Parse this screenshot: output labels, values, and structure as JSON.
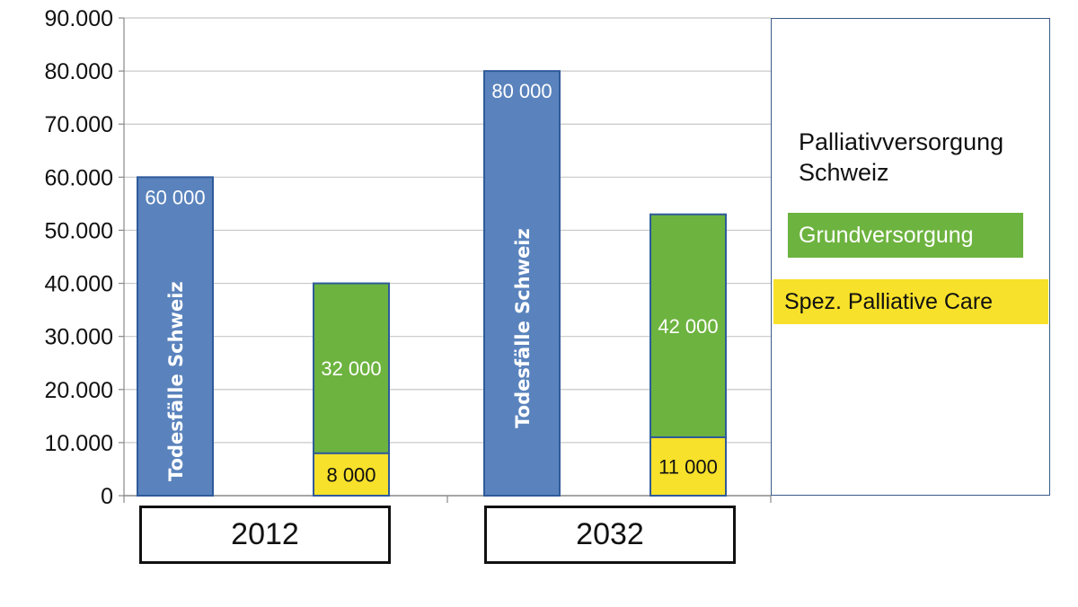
{
  "chart_data": {
    "type": "bar",
    "title": "",
    "xlabel": "",
    "ylabel": "",
    "ylim": [
      0,
      90000
    ],
    "y_ticks": [
      "0",
      "10.000",
      "20.000",
      "30.000",
      "40.000",
      "50.000",
      "60.000",
      "70.000",
      "80.000",
      "90.000"
    ],
    "grid": true,
    "categories": [
      "2012",
      "2032"
    ],
    "series": [
      {
        "name": "Todesfälle Schweiz",
        "color": "#5a83bd",
        "values": [
          60000,
          80000
        ],
        "labels": [
          "60 000",
          "80 000"
        ]
      },
      {
        "name": "Spez. Palliative Care",
        "color": "#f7e12a",
        "values": [
          8000,
          11000
        ],
        "labels": [
          "8 000",
          "11 000"
        ]
      },
      {
        "name": "Grundversorgung",
        "color": "#6db33f",
        "values": [
          32000,
          42000
        ],
        "labels": [
          "32 000",
          "42 000"
        ]
      }
    ],
    "vertical_bar_text": "Todesfälle Schweiz",
    "legend": {
      "title": "Palliativversorgung Schweiz",
      "entries": [
        {
          "label": "Grundversorgung",
          "color": "#6db33f"
        },
        {
          "label": "Spez. Palliative Care",
          "color": "#f7e12a"
        }
      ],
      "placement": "right"
    }
  }
}
